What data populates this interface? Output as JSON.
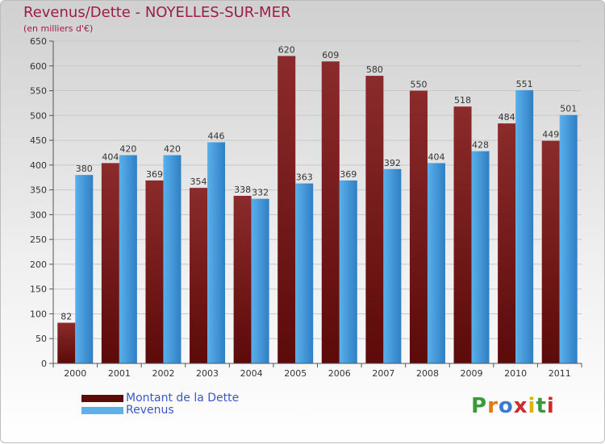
{
  "title": "Revenus/Dette - NOYELLES-SUR-MER",
  "subtitle": "(en milliers d'€)",
  "colors": {
    "dette_dark": "#5c0a0a",
    "dette_light": "#8b2b2b",
    "revenus_dark": "#2f7fc4",
    "revenus_light": "#5ab0ea",
    "title": "#9b1e45",
    "legend_text": "#3a57c9"
  },
  "legend": {
    "dette": "Montant de la Dette",
    "revenus": "Revenus"
  },
  "logo": {
    "letters": [
      "P",
      "r",
      "o",
      "x",
      "i",
      "t",
      "i"
    ],
    "colors": [
      "#3a9a3a",
      "#e07a10",
      "#3a7ad0",
      "#d02a2a",
      "#e0b010",
      "#3a9a3a",
      "#d02a2a"
    ]
  },
  "chart_data": {
    "type": "bar",
    "title": "Revenus/Dette - NOYELLES-SUR-MER",
    "ylabel": "(en milliers d'€)",
    "xlabel": "",
    "categories": [
      "2000",
      "2001",
      "2002",
      "2003",
      "2004",
      "2005",
      "2006",
      "2007",
      "2008",
      "2009",
      "2010",
      "2011"
    ],
    "series": [
      {
        "name": "Montant de la Dette",
        "values": [
          82,
          404,
          369,
          354,
          338,
          620,
          609,
          580,
          550,
          518,
          484,
          449
        ]
      },
      {
        "name": "Revenus",
        "values": [
          380,
          420,
          420,
          446,
          332,
          363,
          369,
          392,
          404,
          428,
          551,
          501
        ]
      }
    ],
    "ylim": [
      0,
      650
    ],
    "yticks": [
      0,
      50,
      100,
      150,
      200,
      250,
      300,
      350,
      400,
      450,
      500,
      550,
      600,
      650
    ],
    "grid": true,
    "legend_position": "bottom-left"
  }
}
